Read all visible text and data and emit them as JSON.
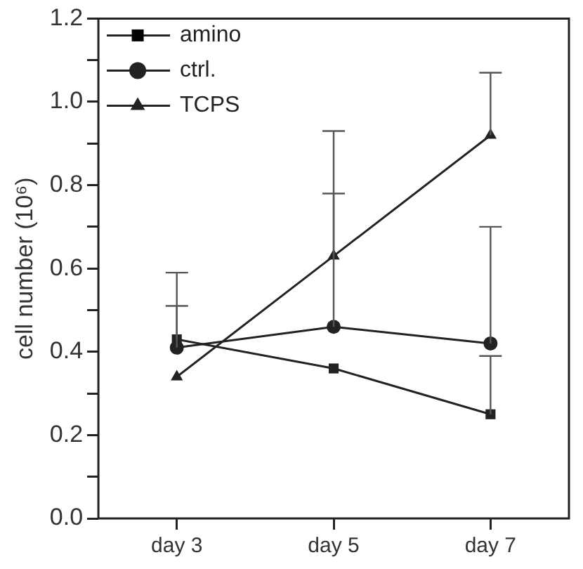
{
  "chart_data": {
    "type": "line",
    "ylabel": "cell number (10⁶)",
    "categories": [
      "day 3",
      "day 5",
      "day 7"
    ],
    "series": [
      {
        "name": "amino",
        "color": "#222222",
        "marker": "square",
        "values": [
          0.43,
          0.36,
          0.25
        ],
        "errors": [
          [
            0.43,
            0.51
          ],
          null,
          [
            0.25,
            0.39
          ]
        ]
      },
      {
        "name": "ctrl.",
        "color": "#222222",
        "marker": "circle",
        "values": [
          0.41,
          0.46,
          0.42
        ],
        "errors": [
          [
            0.41,
            0.59
          ],
          [
            0.46,
            0.78
          ],
          [
            0.42,
            0.7
          ]
        ]
      },
      {
        "name": "TCPS",
        "color": "#222222",
        "marker": "triangle",
        "values": [
          0.34,
          0.63,
          0.92
        ],
        "errors": [
          null,
          [
            0.63,
            0.93
          ],
          [
            0.92,
            1.07
          ]
        ]
      }
    ],
    "ylim": [
      0,
      1.2
    ],
    "yticks": [
      {
        "value": 0,
        "label": "0.0"
      },
      {
        "value": 0.1,
        "label": null
      },
      {
        "value": 0.2,
        "label": "0.2"
      },
      {
        "value": 0.3,
        "label": null
      },
      {
        "value": 0.4,
        "label": "0.4"
      },
      {
        "value": 0.5,
        "label": null
      },
      {
        "value": 0.6,
        "label": "0.6"
      },
      {
        "value": 0.7,
        "label": null
      },
      {
        "value": 0.8,
        "label": "0.8"
      },
      {
        "value": 0.9,
        "label": null
      },
      {
        "value": 1.0,
        "label": "1.0"
      },
      {
        "value": 1.1,
        "label": null
      },
      {
        "value": 1.2,
        "label": "1.2"
      }
    ],
    "grid": false,
    "legend": "top left",
    "line_style": "solid"
  }
}
